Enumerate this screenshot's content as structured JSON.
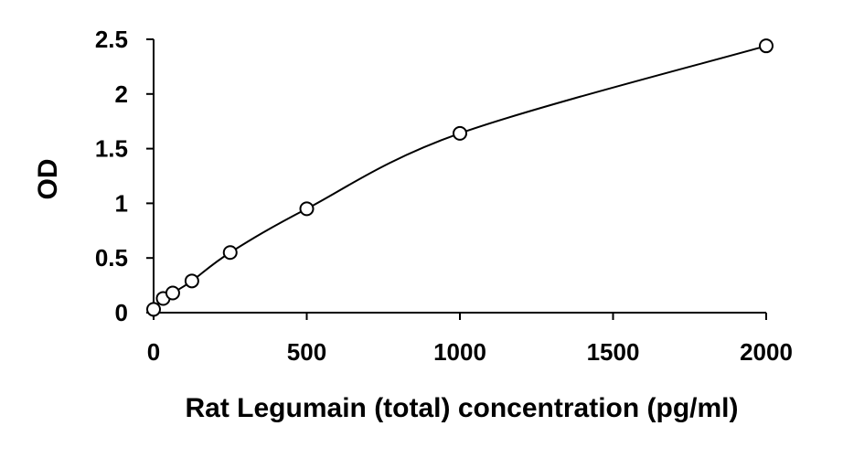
{
  "chart_data": {
    "type": "scatter",
    "title": "",
    "xlabel": "Rat Legumain (total) concentration (pg/ml)",
    "ylabel": "OD",
    "xlim": [
      0,
      2000
    ],
    "ylim": [
      0,
      2.5
    ],
    "x_ticks": [
      "0",
      "500",
      "1000",
      "1500",
      "2000"
    ],
    "y_ticks": [
      "0",
      "0.5",
      "1",
      "1.5",
      "2",
      "2.5"
    ],
    "grid": false,
    "legend": "none",
    "marker": "open-circle",
    "fit": "smooth-curve",
    "series": [
      {
        "x": [
          0,
          31.25,
          62.5,
          125,
          250,
          500,
          1000,
          2000
        ],
        "y": [
          0.03,
          0.13,
          0.18,
          0.29,
          0.55,
          0.95,
          1.64,
          2.44
        ]
      }
    ],
    "colors": {
      "line": "#000000",
      "marker_stroke": "#000000",
      "marker_fill": "#ffffff"
    }
  }
}
